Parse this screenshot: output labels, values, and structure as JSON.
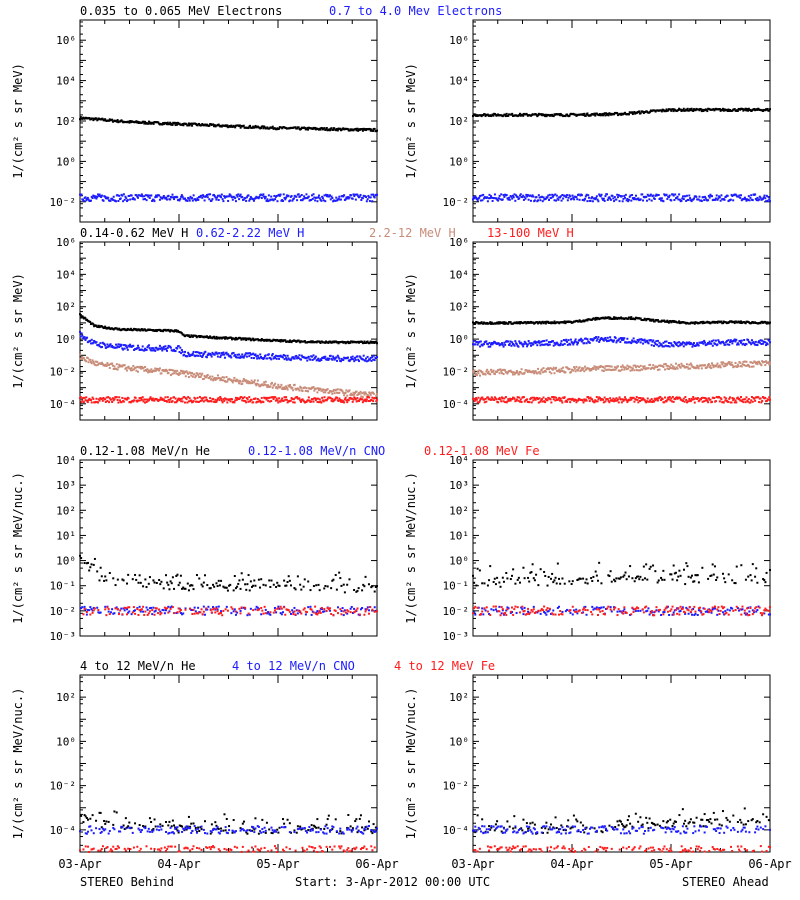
{
  "colors": {
    "black": "#000000",
    "blue": "#1c1cff",
    "tan": "#c88c78",
    "red": "#ff1c1c"
  },
  "footer": {
    "left": "STEREO Behind",
    "center": "Start:  3-Apr-2012 00:00 UTC",
    "right": "STEREO Ahead"
  },
  "x_ticks": [
    "03-Apr",
    "04-Apr",
    "05-Apr",
    "06-Apr"
  ],
  "chart_data": [
    {
      "type": "scatter",
      "row": 0,
      "panels": [
        "STEREO Behind",
        "STEREO Ahead"
      ],
      "ylabel": "1/(cm² s sr MeV)",
      "yscale": "log",
      "ylim_exp": [
        -3,
        7
      ],
      "yticks_exp": [
        -2,
        0,
        2,
        4,
        6
      ],
      "header": [
        {
          "name": "0.035 to 0.065 MeV Electrons",
          "color": "black"
        },
        {
          "name": "0.7 to 4.0 Mev Electrons",
          "color": "blue"
        }
      ],
      "x_days": [
        0,
        3
      ],
      "series": [
        {
          "name": "0.035 to 0.065 MeV Electrons",
          "color": "black",
          "left": {
            "x": [
              0,
              0.5,
              1,
              1.5,
              2,
              2.5,
              3
            ],
            "y_exp": [
              2.15,
              1.95,
              1.85,
              1.75,
              1.65,
              1.6,
              1.55
            ]
          },
          "right": {
            "x": [
              0,
              0.5,
              1,
              1.5,
              2,
              2.5,
              3
            ],
            "y_exp": [
              2.3,
              2.3,
              2.3,
              2.35,
              2.55,
              2.55,
              2.55
            ]
          }
        },
        {
          "name": "0.7 to 4.0 Mev Electrons",
          "color": "blue",
          "left": {
            "x": [
              0,
              3
            ],
            "y_exp": [
              -1.8,
              -1.8
            ]
          },
          "right": {
            "x": [
              0,
              3
            ],
            "y_exp": [
              -1.8,
              -1.8
            ]
          }
        }
      ]
    },
    {
      "type": "scatter",
      "row": 1,
      "panels": [
        "STEREO Behind",
        "STEREO Ahead"
      ],
      "ylabel": "1/(cm² s sr MeV)",
      "yscale": "log",
      "ylim_exp": [
        -5,
        6
      ],
      "yticks_exp": [
        -4,
        -2,
        0,
        2,
        4,
        6
      ],
      "header": [
        {
          "name": "0.14-0.62 MeV H",
          "color": "black"
        },
        {
          "name": "0.62-2.22 MeV H",
          "color": "blue"
        },
        {
          "name": "2.2-12 MeV H",
          "color": "tan"
        },
        {
          "name": "13-100 MeV H",
          "color": "red"
        }
      ],
      "x_days": [
        0,
        3
      ],
      "series": [
        {
          "name": "0.14-0.62 MeV H",
          "color": "black",
          "left": {
            "x": [
              0,
              0.15,
              0.4,
              1.0,
              1.05,
              1.5,
              2.0,
              2.5,
              3
            ],
            "y_exp": [
              1.5,
              0.8,
              0.6,
              0.5,
              0.2,
              0.05,
              -0.1,
              -0.2,
              -0.2
            ]
          },
          "right": {
            "x": [
              0,
              0.5,
              1,
              1.3,
              1.6,
              1.9,
              2.2,
              2.6,
              3
            ],
            "y_exp": [
              1.0,
              1.0,
              1.05,
              1.3,
              1.3,
              1.1,
              1.0,
              1.05,
              1.0
            ]
          }
        },
        {
          "name": "0.62-2.22 MeV H",
          "color": "blue",
          "left": {
            "x": [
              0,
              0.15,
              0.4,
              1.0,
              1.05,
              1.5,
              2.0,
              2.5,
              3
            ],
            "y_exp": [
              0.3,
              -0.3,
              -0.5,
              -0.6,
              -0.9,
              -1.0,
              -1.1,
              -1.2,
              -1.2
            ]
          },
          "right": {
            "x": [
              0,
              0.5,
              1,
              1.3,
              1.6,
              1.9,
              2.2,
              2.6,
              3
            ],
            "y_exp": [
              -0.3,
              -0.3,
              -0.2,
              0.0,
              -0.1,
              -0.3,
              -0.3,
              -0.2,
              -0.2
            ]
          }
        },
        {
          "name": "2.2-12 MeV H",
          "color": "tan",
          "left": {
            "x": [
              0,
              0.2,
              0.5,
              1.0,
              1.5,
              2.0,
              2.5,
              3
            ],
            "y_exp": [
              -1.1,
              -1.6,
              -1.8,
              -2.1,
              -2.5,
              -2.9,
              -3.2,
              -3.5
            ]
          },
          "right": {
            "x": [
              0,
              0.5,
              1,
              1.5,
              2,
              2.5,
              3
            ],
            "y_exp": [
              -2.1,
              -2.0,
              -1.9,
              -1.8,
              -1.7,
              -1.6,
              -1.5
            ]
          }
        },
        {
          "name": "13-100 MeV H",
          "color": "red",
          "left": {
            "x": [
              0,
              3
            ],
            "y_exp": [
              -3.75,
              -3.75
            ]
          },
          "right": {
            "x": [
              0,
              3
            ],
            "y_exp": [
              -3.75,
              -3.75
            ]
          }
        }
      ]
    },
    {
      "type": "scatter",
      "row": 2,
      "panels": [
        "STEREO Behind",
        "STEREO Ahead"
      ],
      "ylabel": "1/(cm² s sr MeV/nuc.)",
      "yscale": "log",
      "ylim_exp": [
        -3,
        4
      ],
      "yticks_exp": [
        -3,
        -2,
        -1,
        0,
        1,
        2,
        3,
        4
      ],
      "header": [
        {
          "name": "0.12-1.08 MeV/n He",
          "color": "black"
        },
        {
          "name": "0.12-1.08 MeV/n CNO",
          "color": "blue"
        },
        {
          "name": "0.12-1.08 MeV Fe",
          "color": "red"
        }
      ],
      "x_days": [
        0,
        3
      ],
      "series": [
        {
          "name": "0.12-1.08 MeV/n He",
          "color": "black",
          "left": {
            "x": [
              0,
              0.1,
              0.25,
              0.5,
              1,
              2,
              3
            ],
            "y_exp": [
              0.1,
              -0.4,
              -0.8,
              -0.9,
              -1.0,
              -1.1,
              -1.1
            ]
          },
          "right": {
            "x": [
              0,
              1,
              1.5,
              2,
              2.5,
              3
            ],
            "y_exp": [
              -0.9,
              -0.8,
              -0.7,
              -0.8,
              -0.7,
              -0.8
            ]
          }
        },
        {
          "name": "0.12-1.08 MeV/n CNO",
          "color": "blue",
          "left": {
            "x": [
              0,
              3
            ],
            "y_exp": [
              -2.0,
              -2.0
            ]
          },
          "right": {
            "x": [
              0,
              3
            ],
            "y_exp": [
              -2.0,
              -2.0
            ]
          }
        },
        {
          "name": "0.12-1.08 MeV Fe",
          "color": "red",
          "left": {
            "x": [
              0,
              3
            ],
            "y_exp": [
              -2.0,
              -2.0
            ]
          },
          "right": {
            "x": [
              0,
              3
            ],
            "y_exp": [
              -2.0,
              -2.0
            ]
          }
        }
      ]
    },
    {
      "type": "scatter",
      "row": 3,
      "panels": [
        "STEREO Behind",
        "STEREO Ahead"
      ],
      "ylabel": "1/(cm² s sr MeV/nuc.)",
      "yscale": "log",
      "ylim_exp": [
        -5,
        3
      ],
      "yticks_exp": [
        -4,
        -2,
        0,
        2
      ],
      "header": [
        {
          "name": "4 to 12 MeV/n He",
          "color": "black"
        },
        {
          "name": "4 to 12 MeV/n CNO",
          "color": "blue"
        },
        {
          "name": "4 to 12 MeV Fe",
          "color": "red"
        }
      ],
      "x_days": [
        0,
        3
      ],
      "series": [
        {
          "name": "4 to 12 MeV/n He",
          "color": "black",
          "left": {
            "x": [
              0,
              0.1,
              0.3,
              1,
              2,
              3
            ],
            "y_exp": [
              -3.5,
              -3.6,
              -3.8,
              -4.0,
              -4.0,
              -4.0
            ]
          },
          "right": {
            "x": [
              0,
              1,
              1.5,
              2,
              2.5,
              3
            ],
            "y_exp": [
              -4.0,
              -4.0,
              -3.9,
              -3.7,
              -3.7,
              -3.7
            ]
          }
        },
        {
          "name": "4 to 12 MeV/n CNO",
          "color": "blue",
          "left": {
            "x": [
              0,
              3
            ],
            "y_exp": [
              -4.0,
              -4.0
            ]
          },
          "right": {
            "x": [
              0,
              3
            ],
            "y_exp": [
              -4.0,
              -4.0
            ]
          }
        },
        {
          "name": "4 to 12 MeV Fe",
          "color": "red",
          "left": {
            "x": [
              0,
              3
            ],
            "y_exp": [
              -4.9,
              -4.9
            ]
          },
          "right": {
            "x": [
              0,
              3
            ],
            "y_exp": [
              -4.9,
              -4.9
            ]
          }
        }
      ]
    }
  ]
}
